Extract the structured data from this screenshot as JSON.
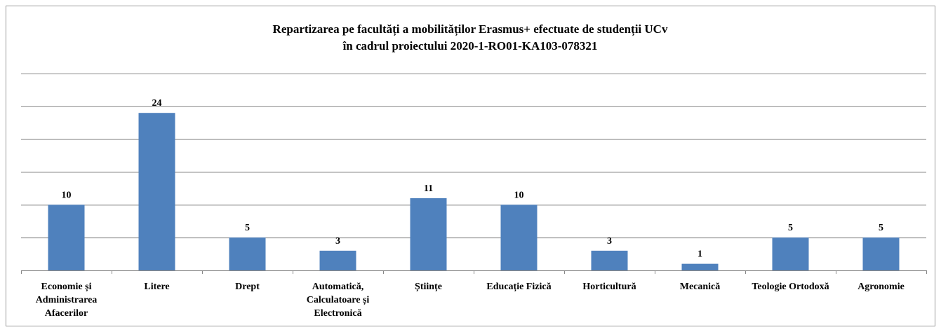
{
  "chart_data": {
    "type": "bar",
    "title": "Repartizarea pe facultăți  a mobilităților  Erasmus+  efectuate de studenții  UCv",
    "subtitle": "în cadrul  proiectului  2020-1-RO01-KA103-078321",
    "categories": [
      "Economie  și Administrarea Afacerilor",
      "Litere",
      "Drept",
      "Automatică, Calculatoare și Electronică",
      "Științe",
      "Educație  Fizică",
      "Horticultură",
      "Mecanică",
      "Teologie Ortodoxă",
      "Agronomie"
    ],
    "values": [
      10,
      24,
      5,
      3,
      11,
      10,
      3,
      1,
      5,
      5
    ],
    "color": "#4f81bd",
    "ylim": [
      0,
      30
    ],
    "yticks": [
      0,
      5,
      10,
      15,
      20,
      25,
      30
    ],
    "grid": true
  }
}
